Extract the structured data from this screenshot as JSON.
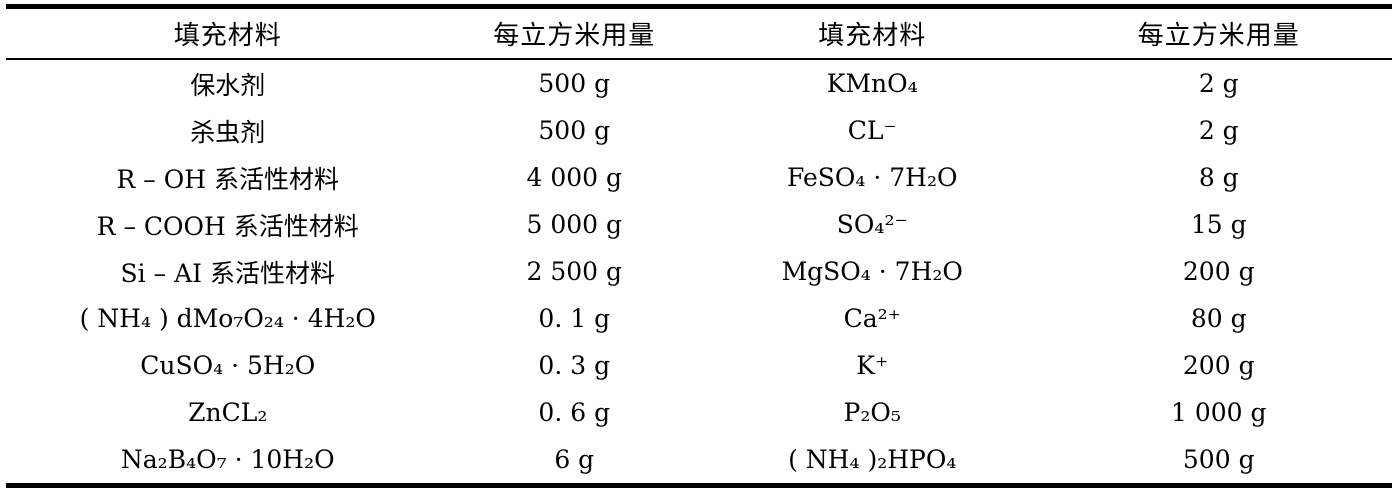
{
  "colors": {
    "background": "#ffffff",
    "text": "#000000",
    "rule": "#000000"
  },
  "table": {
    "columns": [
      "填充材料",
      "每立方米用量",
      "填充材料",
      "每立方米用量"
    ],
    "rows": [
      [
        "保水剂",
        "500 g",
        "KMnO₄",
        "2 g"
      ],
      [
        "杀虫剂",
        "500 g",
        "CL⁻",
        "2 g"
      ],
      [
        "R – OH 系活性材料",
        "4 000 g",
        "FeSO₄ · 7H₂O",
        "8 g"
      ],
      [
        "R – COOH 系活性材料",
        "5 000 g",
        "SO₄²⁻",
        "15 g"
      ],
      [
        "Si – AI 系活性材料",
        "2 500 g",
        "MgSO₄ · 7H₂O",
        "200 g"
      ],
      [
        "( NH₄ ) dMo₇O₂₄ · 4H₂O",
        "0. 1 g",
        "Ca²⁺",
        "80 g"
      ],
      [
        "CuSO₄ · 5H₂O",
        "0. 3 g",
        "K⁺",
        "200 g"
      ],
      [
        "ZnCL₂",
        "0. 6 g",
        "P₂O₅",
        "1 000 g"
      ],
      [
        "Na₂B₄O₇ · 10H₂O",
        "6 g",
        "( NH₄ )₂HPO₄",
        "500 g"
      ]
    ]
  }
}
